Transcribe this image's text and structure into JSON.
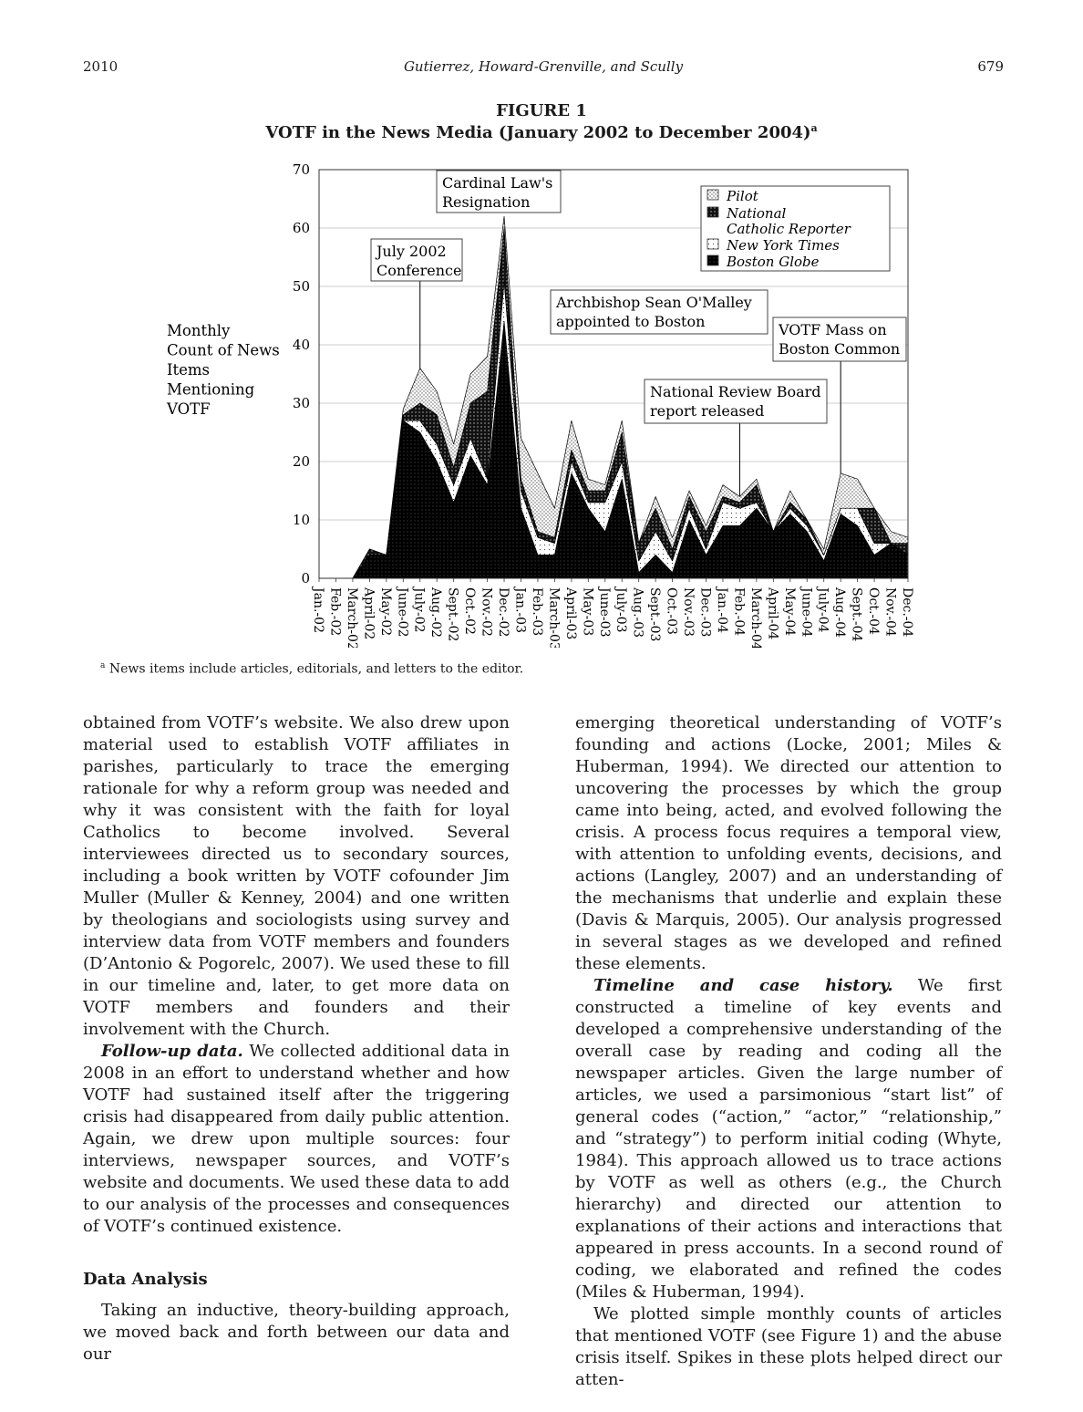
{
  "header": {
    "year": "2010",
    "authors": "Gutierrez, Howard-Grenville, and Scully",
    "page_number": "679"
  },
  "figure": {
    "label": "FIGURE 1",
    "title": "VOTF in the News Media (January 2002 to December 2004)",
    "title_mark": "a",
    "footnote_mark": "a",
    "footnote": "News items include articles, editorials, and letters to the editor."
  },
  "chart_data": {
    "type": "area",
    "stacked": true,
    "ylabel": [
      "Monthly",
      "Count of News",
      "Items",
      "Mentioning",
      "VOTF"
    ],
    "ylim": [
      0,
      70
    ],
    "yticks": [
      0,
      10,
      20,
      30,
      40,
      50,
      60,
      70
    ],
    "grid": true,
    "legend_position": "top-right",
    "categories": [
      "Jan.-02",
      "Feb.-02",
      "March-02",
      "April-02",
      "May-02",
      "June-02",
      "July-02",
      "Aug.-02",
      "Sept.-02",
      "Oct.-02",
      "Nov.-02",
      "Dec.-02",
      "Jan.-03",
      "Feb.-03",
      "March-03",
      "April-03",
      "May-03",
      "June-03",
      "July-03",
      "Aug.-03",
      "Sept.-03",
      "Oct.-03",
      "Nov.-03",
      "Dec.-03",
      "Jan.-04",
      "Feb.-04",
      "March-04",
      "April-04",
      "May-04",
      "June-04",
      "July-04",
      "Aug.-04",
      "Sept.-04",
      "Oct.-04",
      "Nov.-04",
      "Dec.-04"
    ],
    "series": [
      {
        "name": "Boston Globe",
        "values": [
          0,
          0,
          0,
          4,
          4,
          27,
          25,
          20,
          13,
          21,
          16,
          44,
          12,
          4,
          4,
          18,
          12,
          8,
          17,
          1,
          4,
          1,
          10,
          4,
          9,
          9,
          12,
          8,
          11,
          8,
          3,
          11,
          9,
          4,
          6,
          4
        ]
      },
      {
        "name": "New York Times",
        "values": [
          0,
          0,
          0,
          0,
          0,
          0,
          2,
          3,
          3,
          3,
          1,
          7,
          3,
          3,
          2,
          2,
          1,
          5,
          3,
          2,
          4,
          2,
          2,
          1,
          4,
          3,
          1,
          0,
          1,
          1,
          1,
          1,
          3,
          2,
          0,
          0
        ]
      },
      {
        "name": "National Catholic Reporter",
        "values": [
          0,
          0,
          0,
          1,
          0,
          1,
          3,
          5,
          3,
          6,
          15,
          9,
          2,
          1,
          1,
          2,
          2,
          2,
          5,
          3,
          4,
          2,
          2,
          3,
          1,
          1,
          3,
          0,
          1,
          1,
          0,
          0,
          0,
          6,
          0,
          2
        ]
      },
      {
        "name": "Pilot",
        "values": [
          0,
          0,
          0,
          0,
          0,
          1,
          6,
          4,
          4,
          5,
          6,
          2,
          7,
          10,
          5,
          5,
          2,
          1,
          2,
          0,
          2,
          2,
          1,
          1,
          2,
          1,
          1,
          0,
          2,
          0,
          1,
          6,
          5,
          0,
          2,
          1
        ]
      }
    ],
    "legend": [
      {
        "name": "Pilot",
        "pattern": "light-dots"
      },
      {
        "name": "National Catholic Reporter",
        "pattern": "crosshatch"
      },
      {
        "name": "New York Times",
        "pattern": "sparse-dots"
      },
      {
        "name": "Boston Globe",
        "pattern": "dense-black"
      }
    ],
    "annotations": [
      {
        "text": [
          "July 2002",
          "Conference"
        ],
        "x_category": "July-02"
      },
      {
        "text": [
          "Cardinal Law's",
          "Resignation"
        ],
        "x_category": "Dec.-02"
      },
      {
        "text": [
          "Archbishop Sean O'Malley",
          "appointed to Boston"
        ],
        "x_category": "July-03"
      },
      {
        "text": [
          "National Review Board",
          "report released"
        ],
        "x_category": "Feb.-04"
      },
      {
        "text": [
          "VOTF Mass on",
          "Boston Common"
        ],
        "x_category": "Aug.-04"
      }
    ]
  },
  "body": {
    "left_column": {
      "para1": "obtained from VOTF’s website. We also drew upon material used to establish VOTF affiliates in parishes, particularly to trace the emerging rationale for why a reform group was needed and why it was consistent with the faith for loyal Catholics to become involved. Several interviewees directed us to secondary sources, including a book written by VOTF cofounder Jim Muller (Muller & Kenney, 2004) and one written by theologians and sociologists using survey and interview data from VOTF members and founders (D’Antonio & Pogorelc, 2007). We used these to fill in our timeline and, later, to get more data on VOTF members and founders and their involvement with the Church.",
      "para2_head": "Follow-up data.",
      "para2": " We collected additional data in 2008 in an effort to understand whether and how VOTF had sustained itself after the triggering crisis had disappeared from daily public attention. Again, we drew upon multiple sources: four interviews, newspaper sources, and VOTF’s website and documents. We used these data to add to our analysis of the processes and consequences of VOTF’s continued existence.",
      "section_heading": "Data Analysis",
      "para3": "Taking an inductive, theory-building approach, we moved back and forth between our data and our"
    },
    "right_column": {
      "para1": "emerging theoretical understanding of VOTF’s founding and actions (Locke, 2001; Miles & Huberman, 1994). We directed our attention to uncovering the processes by which the group came into being, acted, and evolved following the crisis. A process focus requires a temporal view, with attention to unfolding events, decisions, and actions (Langley, 2007) and an understanding of the mechanisms that underlie and explain these (Davis & Marquis, 2005). Our analysis progressed in several stages as we developed and refined these elements.",
      "para2_head": "Timeline and case history.",
      "para2": " We first constructed a timeline of key events and developed a comprehensive understanding of the overall case by reading and coding all the newspaper articles. Given the large number of articles, we used a parsimonious “start list” of general codes (“action,” “actor,” “relationship,” and “strategy”) to perform initial coding (Whyte, 1984). This approach allowed us to trace actions by VOTF as well as others (e.g., the Church hierarchy) and directed our attention to explanations of their actions and interactions that appeared in press accounts. In a second round of coding, we elaborated and refined the codes (Miles & Huberman, 1994).",
      "para3": "We plotted simple monthly counts of articles that mentioned VOTF (see Figure 1) and the abuse crisis itself. Spikes in these plots helped direct our atten-"
    }
  }
}
